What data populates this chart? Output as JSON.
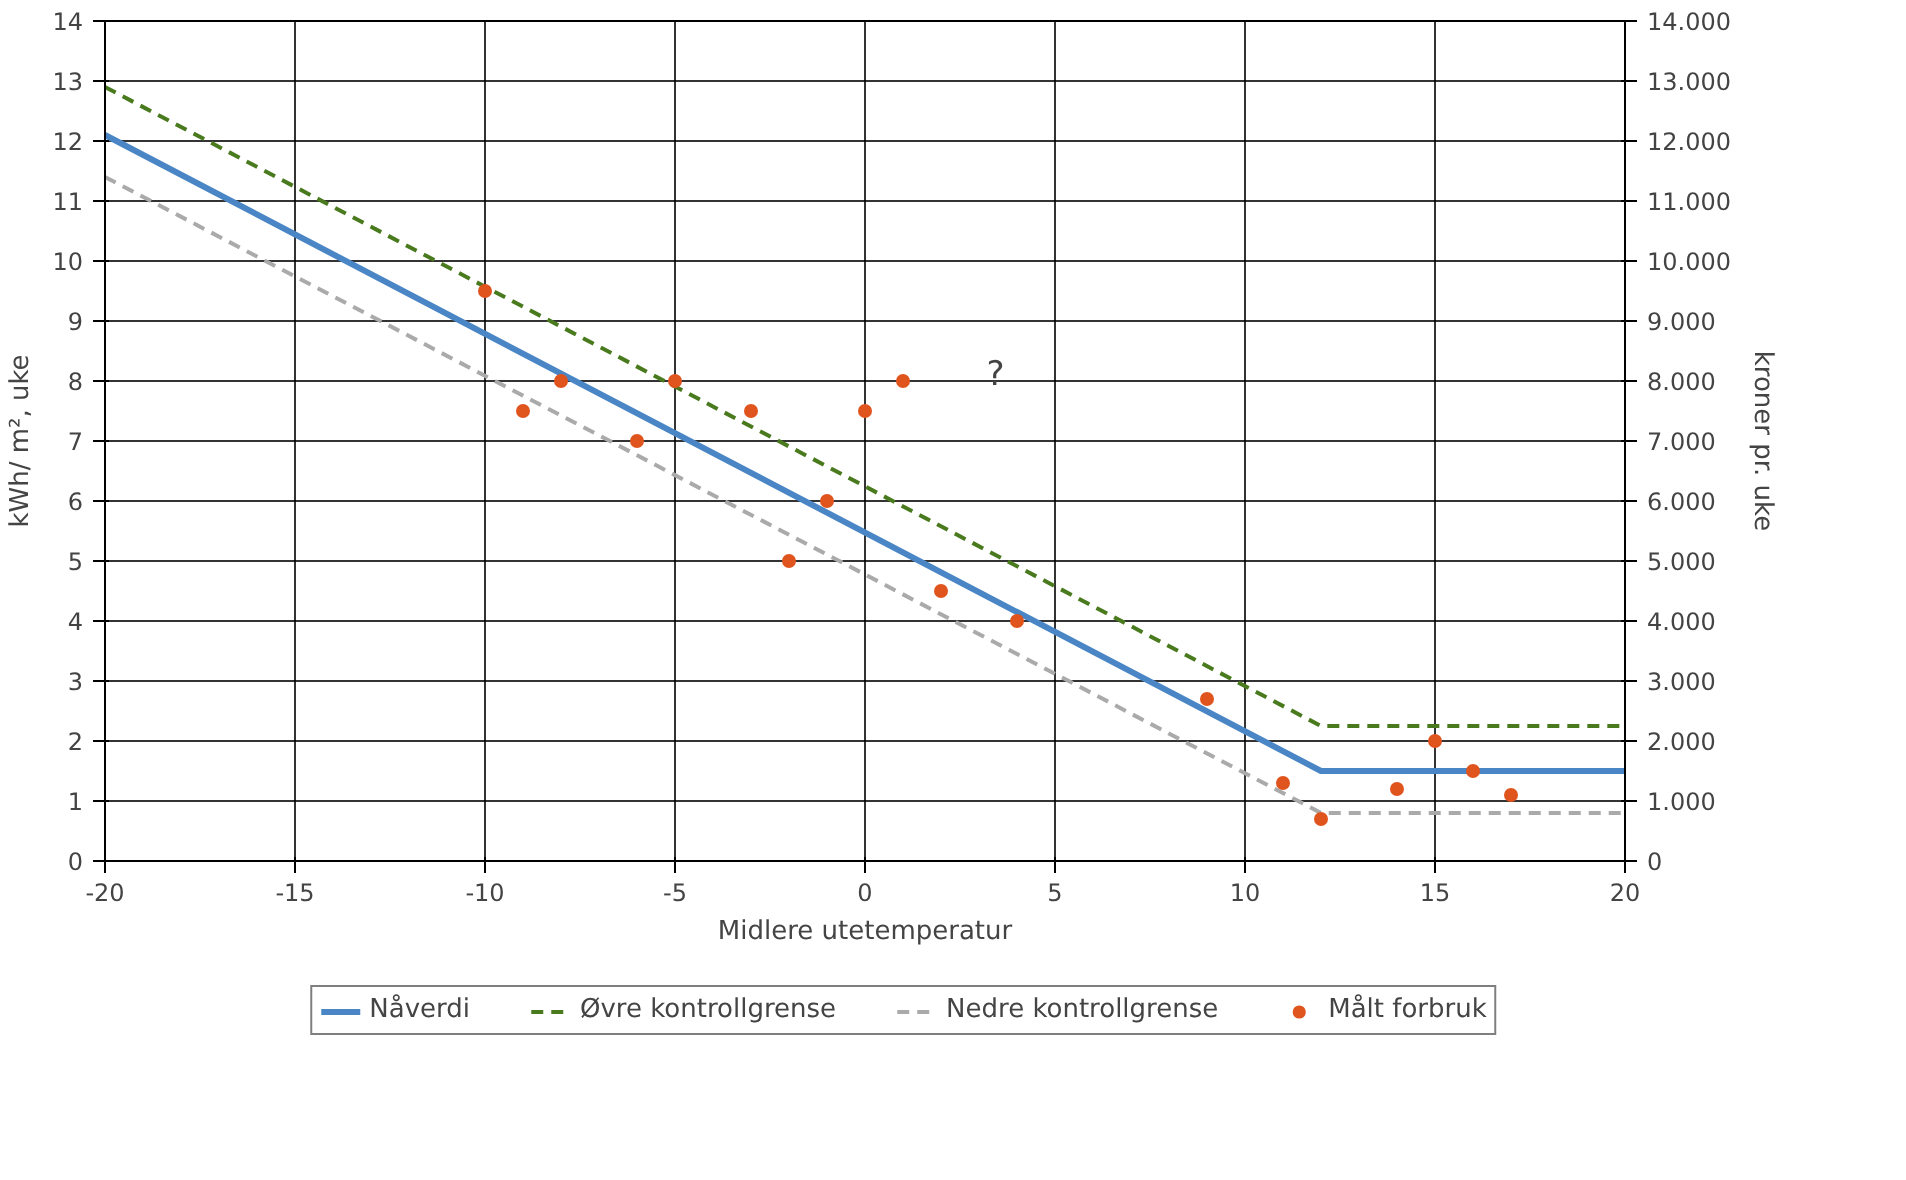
{
  "chart_data": {
    "type": "line",
    "xlabel": "Midlere utetemperatur",
    "ylabel": "kWh/ m², uke",
    "y2label": "kroner pr. uke",
    "xlim": [
      -20,
      20
    ],
    "xticks": [
      -20,
      -15,
      -10,
      -5,
      0,
      5,
      10,
      15,
      20
    ],
    "ylim": [
      0,
      14
    ],
    "yticks": [
      0,
      1,
      2,
      3,
      4,
      5,
      6,
      7,
      8,
      9,
      10,
      11,
      12,
      13,
      14
    ],
    "y2lim": [
      0,
      14000
    ],
    "y2ticks": [
      {
        "value": 0,
        "label": "0"
      },
      {
        "value": 1000,
        "label": "1.000"
      },
      {
        "value": 2000,
        "label": "2.000"
      },
      {
        "value": 3000,
        "label": "3.000"
      },
      {
        "value": 4000,
        "label": "4.000"
      },
      {
        "value": 5000,
        "label": "5.000"
      },
      {
        "value": 6000,
        "label": "6.000"
      },
      {
        "value": 7000,
        "label": "7.000"
      },
      {
        "value": 8000,
        "label": "8.000"
      },
      {
        "value": 9000,
        "label": "9.000"
      },
      {
        "value": 10000,
        "label": "10.000"
      },
      {
        "value": 11000,
        "label": "11.000"
      },
      {
        "value": 12000,
        "label": "12.000"
      },
      {
        "value": 13000,
        "label": "13.000"
      },
      {
        "value": 14000,
        "label": "14.000"
      }
    ],
    "grid": true,
    "legend": "bottom",
    "series": [
      {
        "name": "Nåverdi",
        "line_style": "solid",
        "color": "#4a86c5",
        "x": [
          -20,
          12,
          20
        ],
        "values": [
          12.1,
          1.5,
          1.5
        ]
      },
      {
        "name": "Øvre kontrollgrense",
        "line_style": "dashed",
        "color": "#4a7a1e",
        "x": [
          -20,
          12,
          20
        ],
        "values": [
          12.9,
          2.25,
          2.25
        ]
      },
      {
        "name": "Nedre kontrollgrense",
        "line_style": "dashed",
        "color": "#aaaaaa",
        "x": [
          -20,
          12,
          20
        ],
        "values": [
          11.4,
          0.8,
          0.8
        ]
      },
      {
        "name": "Målt forbruk",
        "type": "scatter",
        "marker": "circle",
        "color": "#e0541e",
        "x": [
          -10,
          -9,
          -8,
          -6,
          -5,
          -3,
          -2,
          -1,
          0,
          1,
          2,
          4,
          9,
          11,
          12,
          14,
          15,
          16,
          17
        ],
        "values": [
          9.5,
          7.5,
          8.0,
          7.0,
          8.0,
          7.5,
          5.0,
          6.0,
          7.5,
          8.0,
          4.5,
          4.0,
          2.7,
          1.3,
          0.7,
          1.2,
          2.0,
          1.5,
          1.1
        ]
      }
    ],
    "annotations": [
      "?"
    ]
  }
}
